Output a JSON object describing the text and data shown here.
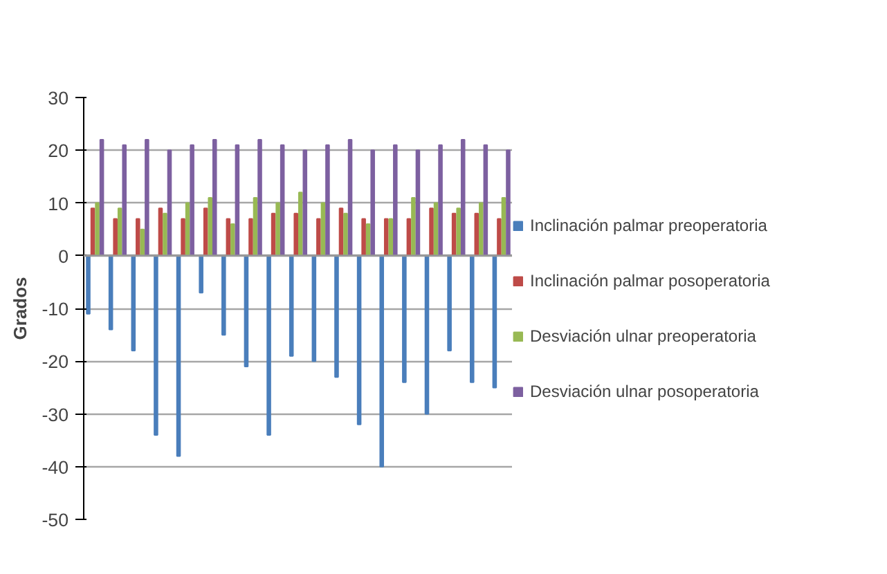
{
  "chart_data": {
    "type": "bar",
    "ylabel": "Grados",
    "categories": [
      null,
      null,
      null,
      null,
      null,
      null,
      null,
      null,
      null,
      null,
      null,
      null,
      null,
      null,
      null,
      null,
      null,
      null,
      null
    ],
    "series": [
      {
        "name": "Inclinación palmar preoperatoria",
        "color": "#4a7ebb",
        "values": [
          -11,
          -14,
          -18,
          -34,
          -38,
          -7,
          -15,
          -21,
          -34,
          -19,
          -20,
          -23,
          -32,
          -40,
          -24,
          -30,
          -18,
          -24,
          -25
        ]
      },
      {
        "name": "Inclinación palmar posoperatoria",
        "color": "#be4b48",
        "values": [
          9,
          7,
          7,
          9,
          7,
          9,
          7,
          7,
          8,
          8,
          7,
          9,
          7,
          7,
          7,
          9,
          8,
          8,
          7
        ]
      },
      {
        "name": "Desviación ulnar preoperatoria",
        "color": "#98b954",
        "values": [
          10,
          9,
          5,
          8,
          10,
          11,
          6,
          11,
          10,
          12,
          10,
          8,
          6,
          7,
          11,
          10,
          9,
          10,
          11
        ]
      },
      {
        "name": "Desviación ulnar posoperatoria",
        "color": "#7d60a0",
        "values": [
          22,
          21,
          22,
          20,
          21,
          22,
          21,
          22,
          21,
          20,
          21,
          22,
          20,
          21,
          20,
          21,
          22,
          21,
          20
        ]
      }
    ],
    "ylim": [
      -50,
      30
    ],
    "yticks": [
      -50,
      -40,
      -30,
      -20,
      -10,
      0,
      10,
      20,
      30
    ],
    "grid": "y",
    "legend": "right"
  }
}
